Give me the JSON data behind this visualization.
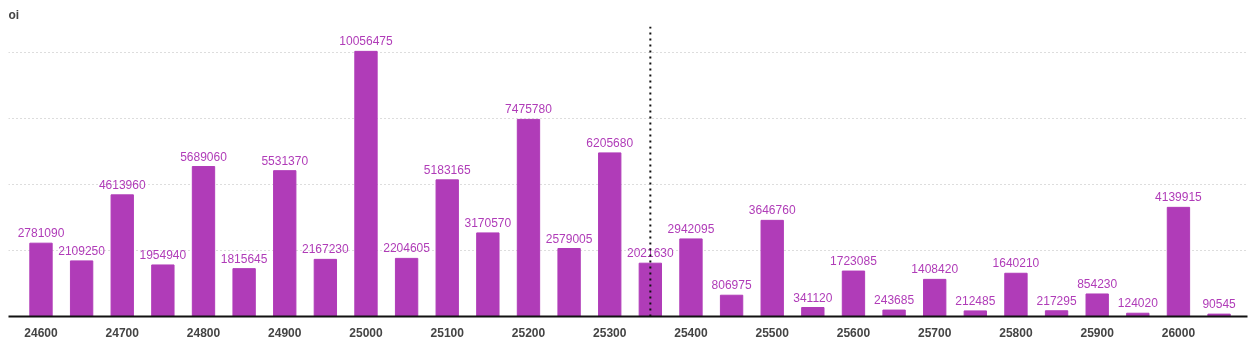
{
  "chart_data": {
    "type": "bar",
    "ylabel": "oi",
    "x": [
      24600,
      24650,
      24700,
      24750,
      24800,
      24850,
      24900,
      24950,
      25000,
      25050,
      25100,
      25150,
      25200,
      25250,
      25300,
      25350,
      25400,
      25450,
      25500,
      25550,
      25600,
      25650,
      25700,
      25750,
      25800,
      25850,
      25900,
      25950,
      26000,
      26050
    ],
    "values": [
      2781090,
      2109250,
      4613960,
      1954940,
      5689060,
      1815645,
      5531370,
      2167230,
      10056475,
      2204605,
      5183165,
      3170570,
      7475780,
      2579005,
      6205680,
      2021630,
      2942095,
      806975,
      3646760,
      341120,
      1723085,
      243685,
      1408420,
      212485,
      1640210,
      217295,
      854230,
      124020,
      4139915,
      90545
    ],
    "color": "#b03cb8",
    "data_labels": true,
    "xlim": [
      24560,
      26085
    ],
    "xticks": [
      24600,
      24700,
      24800,
      24900,
      25000,
      25100,
      25200,
      25300,
      25400,
      25500,
      25600,
      25700,
      25800,
      25900,
      26000
    ],
    "ylim": [
      0,
      11000000
    ],
    "yticks": [
      {
        "value": 0,
        "label": null
      },
      {
        "value": 2500000,
        "label": null
      },
      {
        "value": 5000000,
        "label": null
      },
      {
        "value": 7500000,
        "label": null
      },
      {
        "value": 10000000,
        "label": null
      }
    ],
    "tick_labels": "x",
    "grid": "y",
    "ref_lines": [
      {
        "axis": "x",
        "value": 25350,
        "label": null,
        "color": "#111111",
        "line_style": "dotted"
      }
    ]
  }
}
